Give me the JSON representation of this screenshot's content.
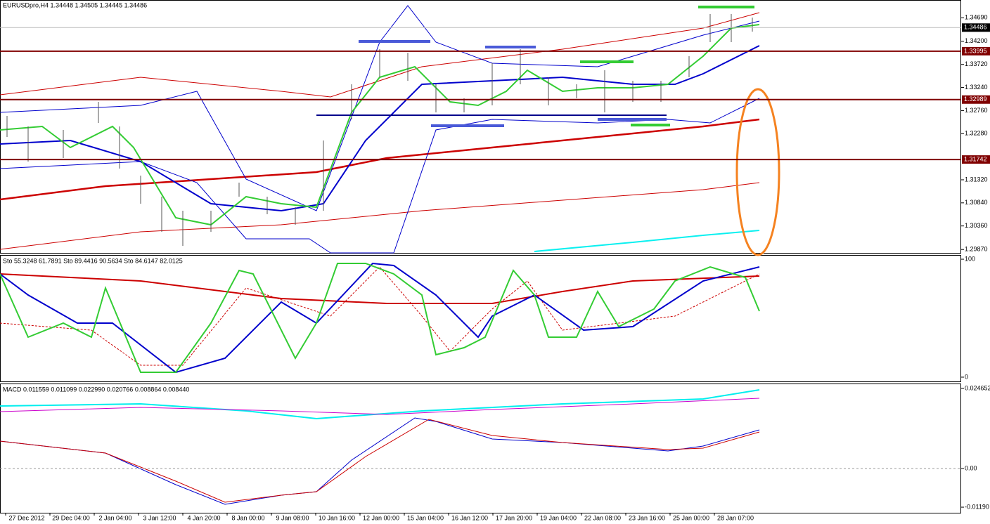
{
  "main": {
    "header": "EURUSDpro,H4  1.34448 1.34505 1.34445 1.34486",
    "ylim": [
      1.298,
      1.3506
    ],
    "yticks": [
      {
        "value": 1.3469,
        "label": "1.34690"
      },
      {
        "value": 1.342,
        "label": "1.34200"
      },
      {
        "value": 1.3372,
        "label": "1.33720"
      },
      {
        "value": 1.3324,
        "label": "1.33240"
      },
      {
        "value": 1.3276,
        "label": "1.32760"
      },
      {
        "value": 1.3228,
        "label": "1.32280"
      },
      {
        "value": 1.3132,
        "label": "1.31320"
      },
      {
        "value": 1.3084,
        "label": "1.30840"
      },
      {
        "value": 1.3036,
        "label": "1.30360"
      },
      {
        "value": 1.2987,
        "label": "1.29870"
      }
    ],
    "levels": [
      {
        "value": 1.33995,
        "label": "1.33995"
      },
      {
        "value": 1.32989,
        "label": "1.32989"
      },
      {
        "value": 1.31742,
        "label": "1.31742"
      }
    ],
    "price": {
      "value": 1.34486,
      "label": "1.34486"
    }
  },
  "stoch": {
    "header": "Sto 55.3248 61.7891  Sto 89.4416 90.5634  Sto 84.6147 82.0125",
    "ylim": [
      -3.6,
      103.6
    ],
    "yticks": [
      100,
      0
    ]
  },
  "macd": {
    "header": "MACD 0.011559 0.011099 0.022990 0.020766 0.008864 0.008440",
    "ylim": [
      -0.01362,
      0.02617
    ],
    "yticks": [
      {
        "value": 0.024652,
        "label": "0.024652"
      },
      {
        "value": 0,
        "label": "0.00"
      },
      {
        "value": -0.0119,
        "label": "-0.01190"
      }
    ]
  },
  "time_labels": [
    "27 Dec 2012",
    "29 Dec 04:00",
    "2 Jan 04:00",
    "3 Jan 12:00",
    "4 Jan 20:00",
    "8 Jan 00:00",
    "9 Jan 08:00",
    "10 Jan 16:00",
    "12 Jan 00:00",
    "15 Jan 04:00",
    "16 Jan 12:00",
    "17 Jan 20:00",
    "19 Jan 04:00",
    "22 Jan 08:00",
    "23 Jan 16:00",
    "25 Jan 00:00",
    "28 Jan 07:00"
  ]
}
